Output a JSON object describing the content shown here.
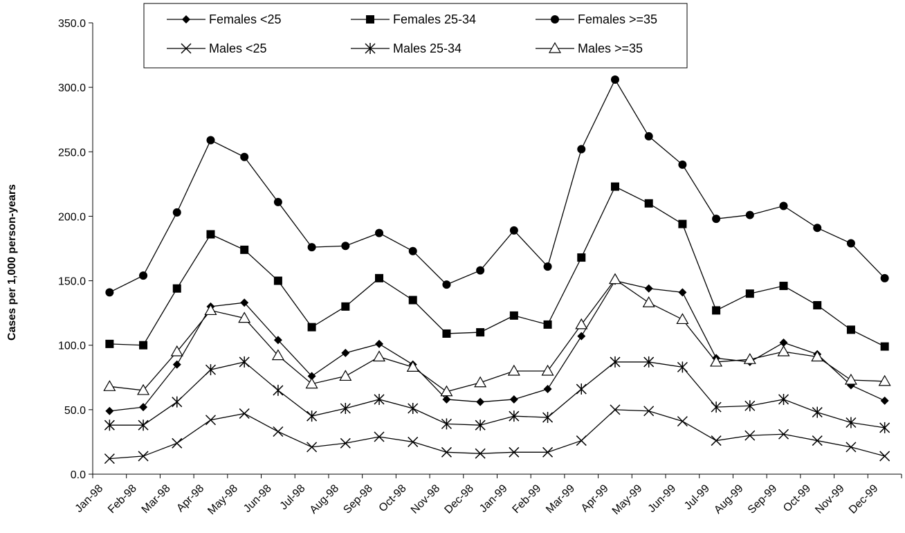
{
  "chart_data": {
    "type": "line",
    "title": "",
    "xlabel": "",
    "ylabel": "Cases per 1,000 person-years",
    "ylim": [
      0,
      350
    ],
    "y_ticks": [
      "0.0",
      "50.0",
      "100.0",
      "150.0",
      "200.0",
      "250.0",
      "300.0",
      "350.0"
    ],
    "grid": false,
    "legend_position": "top",
    "categories": [
      "Jan-98",
      "Feb-98",
      "Mar-98",
      "Apr-98",
      "May-98",
      "Jun-98",
      "Jul-98",
      "Aug-98",
      "Sep-98",
      "Oct-98",
      "Nov-98",
      "Dec-98",
      "Jan-99",
      "Feb-99",
      "Mar-99",
      "Apr-99",
      "May-99",
      "Jun-99",
      "Jul-99",
      "Aug-99",
      "Sep-99",
      "Oct-99",
      "Nov-99",
      "Dec-99"
    ],
    "series": [
      {
        "name": "Females <25",
        "marker": "diamond",
        "values": [
          49,
          52,
          85,
          130,
          133,
          104,
          76,
          94,
          101,
          85,
          58,
          56,
          58,
          66,
          107,
          150,
          144,
          141,
          90,
          87,
          102,
          93,
          69,
          57
        ]
      },
      {
        "name": "Females 25-34",
        "marker": "square",
        "values": [
          101,
          100,
          144,
          186,
          174,
          150,
          114,
          130,
          152,
          135,
          109,
          110,
          123,
          116,
          168,
          223,
          210,
          194,
          127,
          140,
          146,
          131,
          112,
          99
        ]
      },
      {
        "name": "Females >=35",
        "marker": "circle",
        "values": [
          141,
          154,
          203,
          259,
          246,
          211,
          176,
          177,
          187,
          173,
          147,
          158,
          189,
          161,
          252,
          306,
          262,
          240,
          198,
          201,
          208,
          191,
          179,
          152
        ]
      },
      {
        "name": "Males <25",
        "marker": "x",
        "values": [
          12,
          14,
          24,
          42,
          47,
          33,
          21,
          24,
          29,
          25,
          17,
          16,
          17,
          17,
          26,
          50,
          49,
          41,
          26,
          30,
          31,
          26,
          21,
          14
        ]
      },
      {
        "name": "Males 25-34",
        "marker": "asterisk",
        "values": [
          38,
          38,
          56,
          81,
          87,
          65,
          45,
          51,
          58,
          51,
          39,
          38,
          45,
          44,
          66,
          87,
          87,
          83,
          52,
          53,
          58,
          48,
          40,
          36
        ]
      },
      {
        "name": "Males >=35",
        "marker": "triangle",
        "values": [
          68,
          65,
          95,
          127,
          121,
          92,
          70,
          76,
          91,
          83,
          64,
          71,
          80,
          80,
          116,
          151,
          133,
          120,
          87,
          89,
          95,
          91,
          73,
          72
        ]
      }
    ]
  }
}
